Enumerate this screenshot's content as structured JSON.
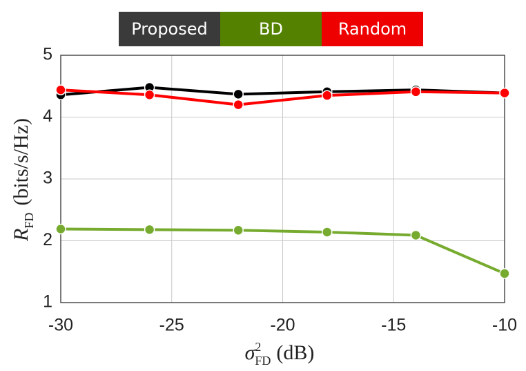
{
  "chart_data": {
    "type": "line",
    "x": [
      -30,
      -26,
      -22,
      -18,
      -14,
      -10
    ],
    "series": [
      {
        "name": "Proposed",
        "color": "#000000",
        "legend_color": "#3a3a3a",
        "values": [
          4.36,
          4.48,
          4.37,
          4.41,
          4.44,
          4.39
        ]
      },
      {
        "name": "BD",
        "color": "#77ab2f",
        "legend_color": "#548200",
        "values": [
          2.19,
          2.18,
          2.17,
          2.14,
          2.09,
          1.47
        ]
      },
      {
        "name": "Random",
        "color": "#ff0000",
        "legend_color": "#ee0000",
        "values": [
          4.44,
          4.36,
          4.2,
          4.35,
          4.41,
          4.39
        ]
      }
    ],
    "xlim": [
      -30,
      -10
    ],
    "xticks": [
      -30,
      -25,
      -20,
      -15,
      -10
    ],
    "ylim": [
      1,
      5
    ],
    "yticks": [
      1,
      2,
      3,
      4,
      5
    ],
    "xlabel": {
      "symbol": "σ",
      "superscript": "2",
      "subscript": "FD",
      "unit": "(dB)"
    },
    "ylabel": {
      "symbol": "R",
      "subscript": "FD",
      "unit": "(bits/s/Hz)"
    },
    "grid": true,
    "legend_position": "top"
  }
}
